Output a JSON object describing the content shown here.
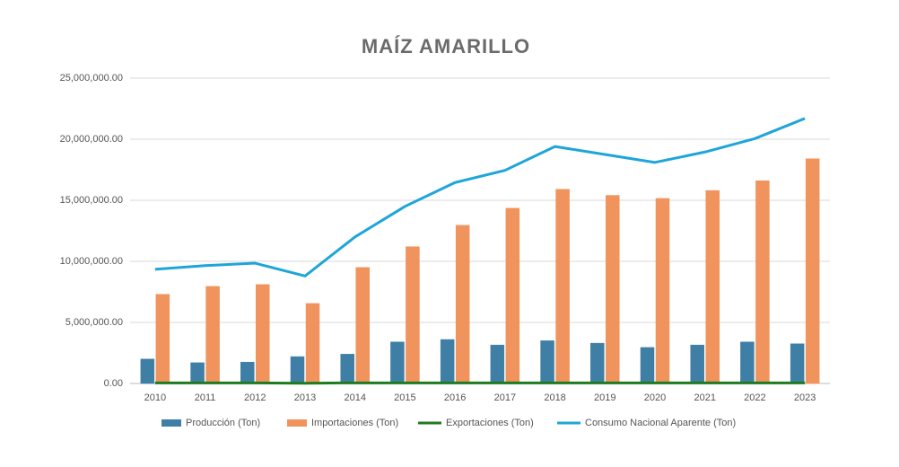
{
  "chart_data": {
    "type": "bar",
    "title": "MAÍZ AMARILLO",
    "categories": [
      "2010",
      "2011",
      "2012",
      "2013",
      "2014",
      "2015",
      "2016",
      "2017",
      "2018",
      "2019",
      "2020",
      "2021",
      "2022",
      "2023"
    ],
    "series": [
      {
        "name": "Producción (Ton)",
        "type": "bar",
        "color": "#3f7fa6",
        "values": [
          2000000,
          1700000,
          1750000,
          2200000,
          2400000,
          3400000,
          3600000,
          3150000,
          3500000,
          3300000,
          2950000,
          3150000,
          3400000,
          3250000
        ]
      },
      {
        "name": "Importaciones (Ton)",
        "type": "bar",
        "color": "#f0935c",
        "values": [
          7300000,
          7950000,
          8100000,
          6550000,
          9500000,
          11200000,
          12950000,
          14350000,
          15900000,
          15400000,
          15150000,
          15800000,
          16600000,
          18400000
        ]
      },
      {
        "name": "Exportaciones (Ton)",
        "type": "line",
        "color": "#1e7b1e",
        "values": [
          50000,
          50000,
          50000,
          20000,
          50000,
          50000,
          50000,
          50000,
          50000,
          50000,
          50000,
          50000,
          50000,
          50000
        ]
      },
      {
        "name": "Consumo Nacional Aparente (Ton)",
        "type": "line",
        "color": "#1ea5d9",
        "values": [
          9350000,
          9650000,
          9850000,
          8800000,
          12000000,
          14500000,
          16450000,
          17450000,
          19400000,
          18750000,
          18100000,
          18950000,
          20050000,
          21700000
        ]
      }
    ],
    "ylim": [
      0,
      25000000
    ],
    "yticks": [
      {
        "value": 0,
        "label": "0.00"
      },
      {
        "value": 5000000,
        "label": "5,000,000.00"
      },
      {
        "value": 10000000,
        "label": "10,000,000.00"
      },
      {
        "value": 15000000,
        "label": "15,000,000.00"
      },
      {
        "value": 20000000,
        "label": "20,000,000.00"
      },
      {
        "value": 25000000,
        "label": "25,000,000.00"
      }
    ],
    "grid": true,
    "legend": "bottom"
  }
}
